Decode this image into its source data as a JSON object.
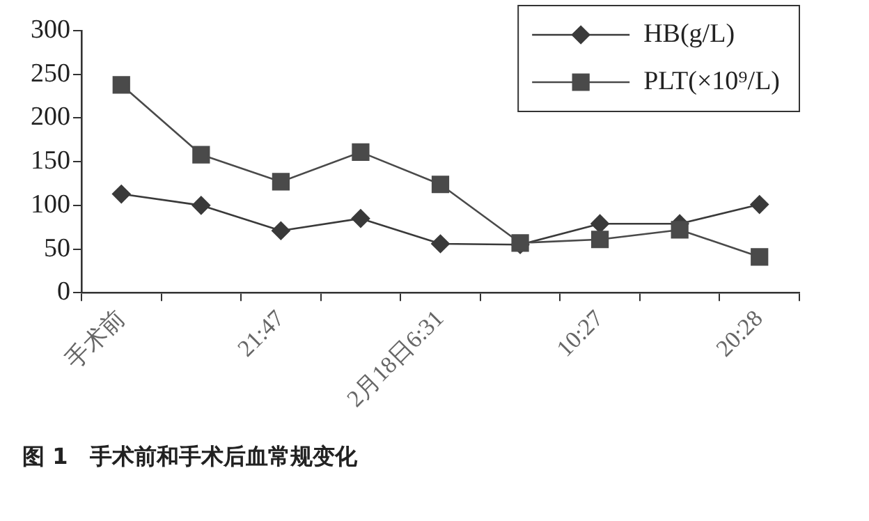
{
  "chart_data": {
    "type": "line",
    "categories": [
      "手术前",
      null,
      "21:47",
      null,
      "2月18日6:31",
      null,
      "10:27",
      null,
      "20:28"
    ],
    "series": [
      {
        "name": "HB(g/L)",
        "color": "#3a3a3a",
        "marker": "diamond",
        "values": [
          113,
          100,
          71,
          85,
          56,
          55,
          79,
          79,
          101
        ]
      },
      {
        "name": "PLT(×10⁹/L)",
        "color": "#4a4a4a",
        "marker": "square",
        "values": [
          238,
          158,
          127,
          161,
          124,
          57,
          61,
          72,
          41
        ]
      }
    ],
    "ylim": [
      0,
      300
    ],
    "yticks": [
      0,
      50,
      100,
      150,
      200,
      250,
      300
    ],
    "grid": false,
    "legend": "top right",
    "line_style": "solid",
    "annotations": [
      "图 1　手术前和手术后血常规变化"
    ]
  }
}
